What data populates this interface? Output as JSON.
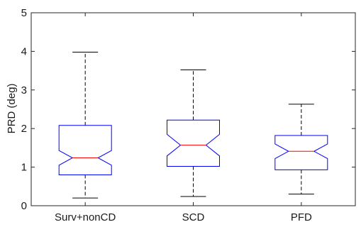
{
  "chart_data": {
    "type": "boxplot",
    "title": "",
    "xlabel": "",
    "ylabel": "PRD (deg)",
    "ylim": [
      0,
      5
    ],
    "yticks": [
      0,
      1,
      2,
      3,
      4,
      5
    ],
    "categories": [
      "Surv+nonCD",
      "SCD",
      "PFD"
    ],
    "notched": true,
    "grid": false,
    "legend": "none",
    "colors": {
      "box": "#0000ff",
      "median": "#ff0000",
      "whisker": "#000000",
      "axis": "#262626"
    },
    "boxes": [
      {
        "category": "Surv+nonCD",
        "whisker_low": 0.2,
        "q1": 0.8,
        "median": 1.24,
        "q3": 2.08,
        "whisker_high": 3.98,
        "notch_low": 1.05,
        "notch_high": 1.43
      },
      {
        "category": "SCD",
        "whisker_low": 0.24,
        "q1": 1.02,
        "median": 1.57,
        "q3": 2.22,
        "whisker_high": 3.52,
        "notch_low": 1.29,
        "notch_high": 1.85
      },
      {
        "category": "PFD",
        "whisker_low": 0.3,
        "q1": 0.93,
        "median": 1.41,
        "q3": 1.82,
        "whisker_high": 2.63,
        "notch_low": 1.22,
        "notch_high": 1.6
      }
    ]
  }
}
